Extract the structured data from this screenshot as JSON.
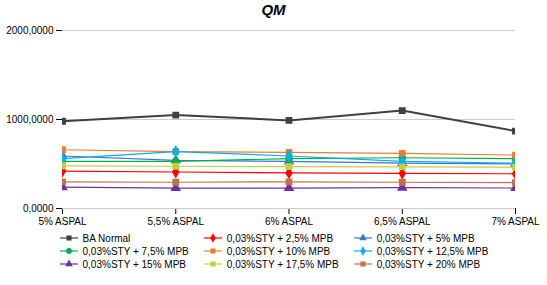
{
  "chart_data": {
    "type": "line",
    "title": "QM",
    "x": [
      5.0,
      5.5,
      6.0,
      6.5,
      7.0
    ],
    "xlim": [
      5.0,
      7.0
    ],
    "xticks": [
      {
        "value": 5.0,
        "label": "5% ASPAL"
      },
      {
        "value": 5.5,
        "label": "5,5% ASPAL"
      },
      {
        "value": 6.0,
        "label": "6% ASPAL"
      },
      {
        "value": 6.5,
        "label": "6,5% ASPAL"
      },
      {
        "value": 7.0,
        "label": "7% ASPAL"
      }
    ],
    "ylim": [
      0,
      2000
    ],
    "yticks": [
      {
        "value": 0,
        "label": "0,0000"
      },
      {
        "value": 1000,
        "label": "1000,0000"
      },
      {
        "value": 2000,
        "label": "2000,0000"
      }
    ],
    "grid": true,
    "legend": "bottom",
    "series": [
      {
        "name": "BA Normal",
        "color": "#404040",
        "marker": "square",
        "values": [
          980,
          1050,
          990,
          1100,
          870
        ]
      },
      {
        "name": "0,03%STY + 2,5% MPB",
        "color": "#ff0000",
        "marker": "diamond",
        "values": [
          420,
          410,
          400,
          395,
          390
        ]
      },
      {
        "name": "0,03%STY + 5% MPB",
        "color": "#4472c4",
        "marker": "triangle",
        "values": [
          590,
          540,
          530,
          510,
          500
        ]
      },
      {
        "name": "0,03%STY + 7,5% MPB",
        "color": "#00b050",
        "marker": "circle",
        "values": [
          530,
          530,
          560,
          570,
          560
        ]
      },
      {
        "name": "0,03%STY + 10% MPB",
        "color": "#ed7d31",
        "marker": "square",
        "values": [
          660,
          640,
          630,
          620,
          600
        ]
      },
      {
        "name": "0,03%STY + 12,5% MPB",
        "color": "#00b0f0",
        "marker": "diamond",
        "values": [
          560,
          640,
          590,
          530,
          510
        ]
      },
      {
        "name": "0,03%STY + 15% MPB",
        "color": "#7030a0",
        "marker": "triangle",
        "values": [
          240,
          230,
          230,
          235,
          230
        ]
      },
      {
        "name": "0,03%STY + 17,5% MPB",
        "color": "#c0d040",
        "marker": "square",
        "values": [
          480,
          475,
          470,
          468,
          465
        ]
      },
      {
        "name": "0,03%STY + 20% MPB",
        "color": "#c07050",
        "marker": "square",
        "values": [
          300,
          295,
          300,
          295,
          290
        ]
      }
    ]
  }
}
